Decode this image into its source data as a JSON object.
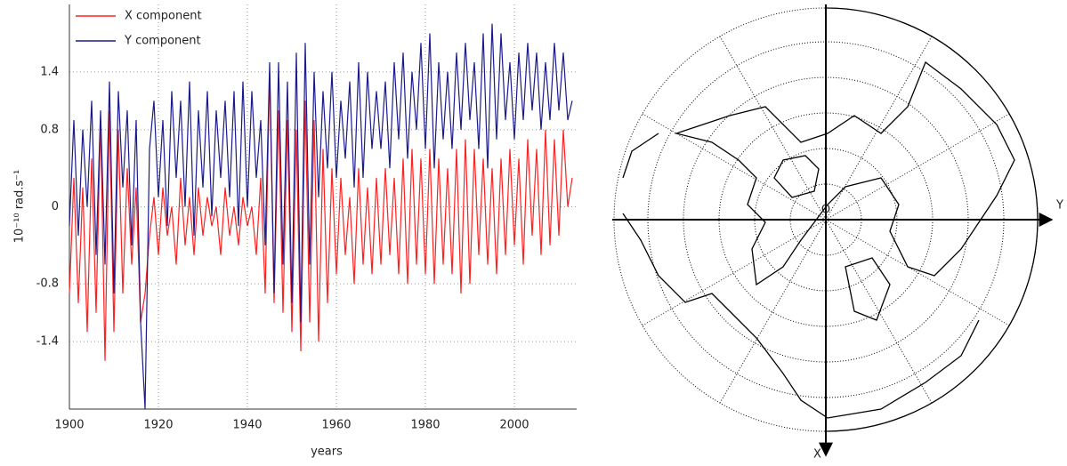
{
  "chart_data": {
    "type": "line",
    "xlabel": "years",
    "ylabel": "10⁻¹⁰ rad.s⁻¹",
    "x": [
      1900,
      1901,
      1902,
      1903,
      1904,
      1905,
      1906,
      1907,
      1908,
      1909,
      1910,
      1911,
      1912,
      1913,
      1914,
      1915,
      1916,
      1917,
      1918,
      1919,
      1920,
      1921,
      1922,
      1923,
      1924,
      1925,
      1926,
      1927,
      1928,
      1929,
      1930,
      1931,
      1932,
      1933,
      1934,
      1935,
      1936,
      1937,
      1938,
      1939,
      1940,
      1941,
      1942,
      1943,
      1944,
      1945,
      1946,
      1947,
      1948,
      1949,
      1950,
      1951,
      1952,
      1953,
      1954,
      1955,
      1956,
      1957,
      1958,
      1959,
      1960,
      1961,
      1962,
      1963,
      1964,
      1965,
      1966,
      1967,
      1968,
      1969,
      1970,
      1971,
      1972,
      1973,
      1974,
      1975,
      1976,
      1977,
      1978,
      1979,
      1980,
      1981,
      1982,
      1983,
      1984,
      1985,
      1986,
      1987,
      1988,
      1989,
      1990,
      1991,
      1992,
      1993,
      1994,
      1995,
      1996,
      1997,
      1998,
      1999,
      2000,
      2001,
      2002,
      2003,
      2004,
      2005,
      2006,
      2007,
      2008,
      2009,
      2010,
      2011,
      2012,
      2013
    ],
    "series": [
      {
        "name": "X component",
        "color": "#ff2020",
        "values": [
          -0.9,
          0.3,
          -1.0,
          0.2,
          -1.3,
          0.5,
          -1.1,
          0.9,
          -1.6,
          1.0,
          -1.3,
          0.8,
          -0.9,
          0.4,
          -0.6,
          0.2,
          -1.2,
          -0.9,
          -0.3,
          0.1,
          -0.5,
          0.2,
          -0.3,
          0.0,
          -0.6,
          0.3,
          -0.4,
          0.1,
          -0.5,
          0.2,
          -0.3,
          0.1,
          -0.2,
          0.0,
          -0.5,
          0.2,
          -0.3,
          0.0,
          -0.4,
          0.1,
          -0.2,
          0.0,
          -0.5,
          0.3,
          -0.9,
          1.4,
          -1.0,
          1.0,
          -1.1,
          0.9,
          -1.3,
          0.8,
          -1.5,
          1.1,
          -1.2,
          0.9,
          -1.4,
          0.6,
          -1.0,
          0.4,
          -0.7,
          0.3,
          -0.5,
          0.1,
          -0.8,
          0.4,
          -0.6,
          0.2,
          -0.7,
          0.3,
          -0.6,
          0.4,
          -0.5,
          0.3,
          -0.7,
          0.5,
          -0.8,
          0.6,
          -0.6,
          0.5,
          -0.7,
          0.6,
          -0.8,
          0.5,
          -0.6,
          0.4,
          -0.7,
          0.6,
          -0.9,
          0.7,
          -0.8,
          0.6,
          -0.5,
          0.5,
          -0.6,
          0.4,
          -0.7,
          0.5,
          -0.5,
          0.6,
          -0.4,
          0.5,
          -0.6,
          0.7,
          -0.3,
          0.6,
          -0.5,
          0.8,
          -0.4,
          0.7,
          -0.3,
          0.8,
          0.0,
          0.3
        ]
      },
      {
        "name": "Y component",
        "color": "#1a1a8c",
        "values": [
          -0.2,
          0.9,
          -0.3,
          0.8,
          0.0,
          1.1,
          -0.5,
          1.0,
          -0.6,
          1.3,
          -0.9,
          1.2,
          0.2,
          1.0,
          -0.4,
          0.9,
          -1.2,
          -2.1,
          0.6,
          1.1,
          0.1,
          0.9,
          -0.2,
          1.2,
          0.3,
          1.1,
          0.0,
          1.3,
          -0.3,
          1.0,
          0.2,
          1.2,
          -0.1,
          1.0,
          0.3,
          1.1,
          0.1,
          1.2,
          -0.2,
          1.3,
          0.0,
          1.2,
          0.3,
          0.9,
          -0.4,
          1.5,
          -0.9,
          1.5,
          -0.6,
          1.3,
          -1.0,
          1.6,
          -1.2,
          1.7,
          -0.6,
          1.4,
          0.1,
          1.2,
          0.4,
          1.4,
          0.3,
          1.1,
          0.5,
          1.3,
          0.2,
          1.5,
          0.3,
          1.4,
          0.6,
          1.2,
          0.6,
          1.3,
          0.4,
          1.5,
          0.7,
          1.6,
          0.5,
          1.4,
          0.8,
          1.7,
          0.6,
          1.8,
          0.4,
          1.5,
          0.7,
          1.4,
          0.6,
          1.6,
          0.8,
          1.7,
          0.9,
          1.5,
          0.6,
          1.8,
          0.4,
          1.9,
          0.7,
          1.8,
          0.9,
          1.5,
          0.7,
          1.6,
          0.9,
          1.7,
          1.0,
          1.6,
          0.8,
          1.5,
          0.9,
          1.7,
          1.0,
          1.6,
          0.9,
          1.1
        ]
      }
    ],
    "xlim": [
      1900,
      2014
    ],
    "xticks": [
      1900,
      1920,
      1940,
      1960,
      1980,
      2000
    ],
    "ylim": [
      -2.1,
      2.1
    ],
    "yticks": [
      1.4,
      0.8,
      0,
      -0.8,
      -1.4
    ],
    "grid": true,
    "legend": "top-left"
  },
  "map": {
    "x_axis_label": "X",
    "y_axis_label": "Y",
    "origin_label": "O"
  }
}
